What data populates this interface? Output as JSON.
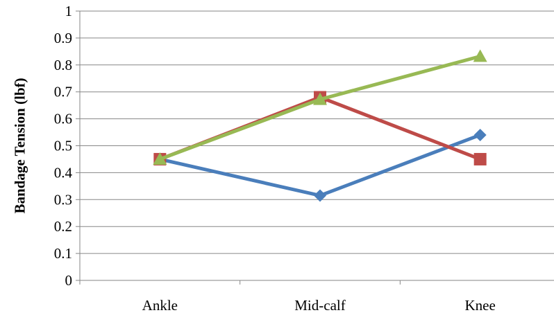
{
  "chart_data": {
    "type": "line",
    "title": "",
    "xlabel": "",
    "ylabel": "Bandage Tension (lbf)",
    "categories": [
      "Ankle",
      "Mid-calf",
      "Knee"
    ],
    "ylim": [
      0,
      1
    ],
    "yticks": [
      "0",
      "0.1",
      "0.2",
      "0.3",
      "0.4",
      "0.5",
      "0.6",
      "0.7",
      "0.8",
      "0.9",
      "1"
    ],
    "grid": true,
    "legend": "none",
    "series": [
      {
        "values": [
          0.45,
          0.315,
          0.54
        ],
        "color": "#4a7ebb",
        "marker": "diamond"
      },
      {
        "values": [
          0.45,
          0.68,
          0.45
        ],
        "color": "#be4b48",
        "marker": "square"
      },
      {
        "values": [
          0.45,
          0.672,
          0.832
        ],
        "color": "#98b954",
        "marker": "triangle"
      }
    ]
  }
}
